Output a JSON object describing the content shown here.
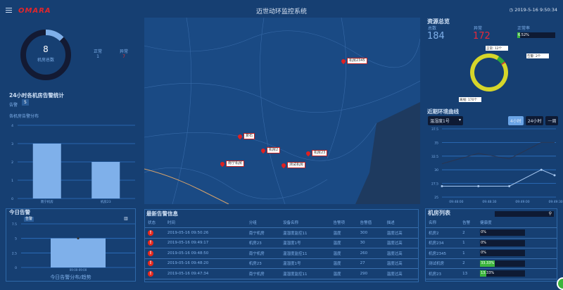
{
  "header": {
    "title": "迈世动环监控系统",
    "logo": "OMARA",
    "datetime": "2019-5-16 9:50:34",
    "clock_icon": "clock-icon",
    "menu_icon": "menu-icon"
  },
  "overview": {
    "total": "8",
    "total_label": "机房总数",
    "normal_label": "正常",
    "normal": "1",
    "abnormal_label": "异常",
    "abnormal": "7",
    "ring_normal_fraction": 0.125
  },
  "alarm24": {
    "title": "24小时各机房告警统计",
    "alarm_label": "告警",
    "alarm_count": "5",
    "subtitle": "各机房告警分布",
    "chart_data": {
      "type": "bar",
      "categories": [
        "南宁机房",
        "机房23"
      ],
      "values": [
        3,
        2
      ],
      "ylim": [
        0,
        4
      ],
      "yticks": [
        "0",
        "1",
        "2",
        "3",
        "4"
      ],
      "color": "#7fb0ea"
    }
  },
  "today": {
    "title": "今日告警",
    "legend": "告警",
    "xlabel": "今日告警分布/趋势",
    "chart_icon": "bar-chart-icon",
    "chart_data": {
      "type": "bar",
      "categories": [
        "09:00-09:00"
      ],
      "values": [
        5
      ],
      "ylim": [
        0,
        7.5
      ],
      "yticks": [
        "0",
        "2.5",
        "5",
        "7.5"
      ]
    }
  },
  "map": {
    "markers": [
      "机房2345",
      "复石",
      "机房2",
      "南宁机房",
      "测试机房",
      "机房23"
    ]
  },
  "alarms": {
    "title": "最新告警信息",
    "columns": [
      "状态",
      "时间",
      "分组",
      "设备名称",
      "告警项",
      "告警值",
      "描述"
    ],
    "rows": [
      [
        "2019-05-16 09:50:26",
        "南宁机房",
        "温湿度监控11",
        "温度",
        "300",
        "温度过高"
      ],
      [
        "2019-05-16 09:49:17",
        "机房23",
        "温湿度1号",
        "温度",
        "30",
        "温度过高"
      ],
      [
        "2019-05-16 09:48:50",
        "南宁机房",
        "温湿度监控11",
        "温度",
        "260",
        "温度过高"
      ],
      [
        "2019-05-16 09:48:20",
        "机房23",
        "温湿度1号",
        "温度",
        "27",
        "温度过高"
      ],
      [
        "2019-05-16 09:47:34",
        "南宁机房",
        "温湿度监控11",
        "温度",
        "290",
        "温度过高"
      ]
    ]
  },
  "resources": {
    "title": "资源总览",
    "total_label": "总数",
    "total": "184",
    "abnormal_label": "异常",
    "abnormal": "172",
    "rate_label": "正常率",
    "rate": "6.52%",
    "rate_value": 6.52,
    "pie": {
      "type": "pie",
      "slices": [
        {
          "label": "正常: 12个",
          "value": 12,
          "color": "#2fa83a"
        },
        {
          "label": "告警: 2个",
          "value": 2,
          "color": "#e83030"
        },
        {
          "label": "离线: 170个",
          "value": 170,
          "color": "#d6d62a"
        }
      ]
    }
  },
  "env": {
    "title": "近期环境曲线",
    "select": "温湿度1号",
    "ranges": [
      "4小时",
      "24小时",
      "一周"
    ],
    "active_range": "4小时",
    "chart_data": {
      "type": "line",
      "x": [
        "09:47:47",
        "09:48:20",
        "09:48:48",
        "09:49:17",
        "09:49:29"
      ],
      "xticks": [
        "09:48:00",
        "09:48:30",
        "09:49:00",
        "09:49:30"
      ],
      "ylim": [
        25,
        37.5
      ],
      "yticks": [
        "25",
        "27.5",
        "30",
        "32.5",
        "35",
        "37.5"
      ],
      "series": [
        {
          "values": [
            31.1,
            33,
            32,
            35,
            35
          ],
          "color": "#2a3550"
        },
        {
          "values": [
            27,
            27,
            27,
            30,
            29
          ],
          "color": "#a8c8f0"
        }
      ]
    }
  },
  "rooms": {
    "title": "机房列表",
    "search_placeholder": "",
    "columns": [
      "名称",
      "告警",
      "健康度"
    ],
    "rows": [
      {
        "name": "机房2",
        "alarms": "2",
        "health": "0%",
        "value": 0
      },
      {
        "name": "机房234",
        "alarms": "1",
        "health": "0%",
        "value": 0
      },
      {
        "name": "机房2345",
        "alarms": "1",
        "health": "0%",
        "value": 0
      },
      {
        "name": "测试机房",
        "alarms": "2",
        "health": "33.33%",
        "value": 33.33
      },
      {
        "name": "机房23",
        "alarms": "13",
        "health": "13.33%",
        "value": 13.33
      }
    ]
  }
}
